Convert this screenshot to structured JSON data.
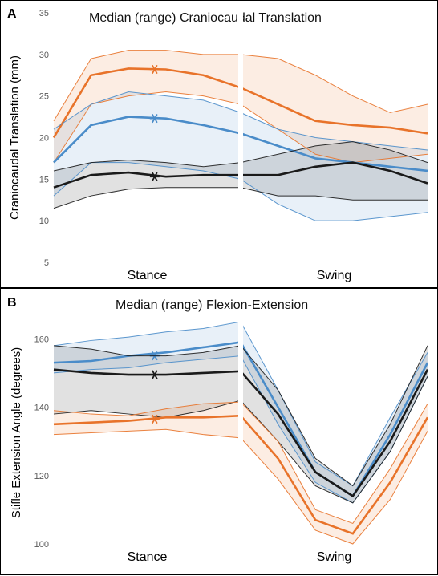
{
  "colors": {
    "orange": "#e8732a",
    "blue": "#4a8cc9",
    "black": "#1a1a1a"
  },
  "chart_data": [
    {
      "panel_label": "A",
      "type": "line",
      "title": "Median (range) Craniocaudal Translation",
      "ylabel": "Craniocaudal Translation (mm)",
      "ylim": [
        5,
        35
      ],
      "yticks": [
        5,
        10,
        15,
        20,
        25,
        30,
        35
      ],
      "categories": [
        "Stance",
        "Swing"
      ],
      "x": [
        0,
        10,
        20,
        30,
        40,
        50,
        60,
        70,
        80,
        90,
        100
      ],
      "stance_end": 50,
      "series": [
        {
          "color": "orange",
          "median": [
            20,
            27.5,
            28.3,
            28.2,
            27.5,
            26,
            24,
            22,
            21.5,
            21.2,
            20.5
          ],
          "min": [
            17,
            24,
            25,
            25.5,
            25,
            24,
            21,
            18,
            17,
            17.5,
            18
          ],
          "max": [
            22,
            29.5,
            30.5,
            30.5,
            30,
            30,
            29.5,
            27.5,
            25,
            23,
            24
          ],
          "marker": {
            "x": 27,
            "y": 28.2
          }
        },
        {
          "color": "blue",
          "median": [
            17,
            21.5,
            22.5,
            22.3,
            21.5,
            20.5,
            19,
            17.5,
            17,
            16.5,
            16
          ],
          "min": [
            13,
            17,
            17,
            16.5,
            16,
            15,
            12,
            10,
            10,
            10.5,
            11
          ],
          "max": [
            21,
            24,
            25.5,
            25,
            24.5,
            23,
            21,
            20,
            19.5,
            19,
            18.5
          ],
          "marker": {
            "x": 27,
            "y": 22.3
          }
        },
        {
          "color": "black",
          "median": [
            14,
            15.5,
            15.8,
            15.3,
            15.5,
            15.5,
            15.5,
            16.5,
            17,
            16,
            14.5
          ],
          "min": [
            11.5,
            13,
            13.8,
            14,
            14,
            14,
            13,
            13,
            12.5,
            12.5,
            12.5
          ],
          "max": [
            16,
            17,
            17.3,
            17,
            16.5,
            17,
            18,
            19,
            19.5,
            18.5,
            17
          ],
          "marker": {
            "x": 27,
            "y": 15.3
          }
        }
      ]
    },
    {
      "panel_label": "B",
      "type": "line",
      "title": "Median (range) Flexion-Extension",
      "ylabel": "Stifle Extension Angle (degrees)",
      "ylim": [
        100,
        165
      ],
      "yticks": [
        100,
        120,
        140,
        160
      ],
      "categories": [
        "Stance",
        "Swing"
      ],
      "x": [
        0,
        10,
        20,
        30,
        40,
        50,
        60,
        70,
        80,
        90,
        100
      ],
      "stance_end": 50,
      "series": [
        {
          "color": "blue",
          "median": [
            153,
            153.5,
            155,
            156,
            157.5,
            159,
            140,
            121,
            114,
            132,
            153
          ],
          "min": [
            150,
            151,
            151.5,
            153,
            154,
            155,
            135,
            118,
            112,
            127,
            149
          ],
          "max": [
            158,
            159.5,
            160.5,
            162,
            163,
            165,
            145,
            124,
            117,
            137,
            156
          ],
          "marker": {
            "x": 27,
            "y": 155
          }
        },
        {
          "color": "black",
          "median": [
            151,
            150,
            149.5,
            149.5,
            150,
            150.5,
            138,
            121,
            114,
            130,
            151
          ],
          "min": [
            138,
            139,
            138,
            137,
            139,
            142,
            130,
            117,
            112,
            127,
            149
          ],
          "max": [
            158,
            157,
            155,
            155,
            156,
            158,
            145,
            125,
            117,
            135,
            158
          ],
          "marker": {
            "x": 27,
            "y": 149.5
          }
        },
        {
          "color": "orange",
          "median": [
            135,
            135.5,
            136,
            137,
            137,
            137.5,
            125,
            107,
            103,
            118,
            137
          ],
          "min": [
            132,
            132.5,
            133,
            133.5,
            132,
            131,
            119,
            104,
            100,
            113,
            133
          ],
          "max": [
            139,
            138,
            137.5,
            139.5,
            141,
            141.5,
            130,
            110,
            106,
            122,
            141
          ],
          "marker": {
            "x": 27,
            "y": 136.5
          }
        }
      ]
    }
  ]
}
